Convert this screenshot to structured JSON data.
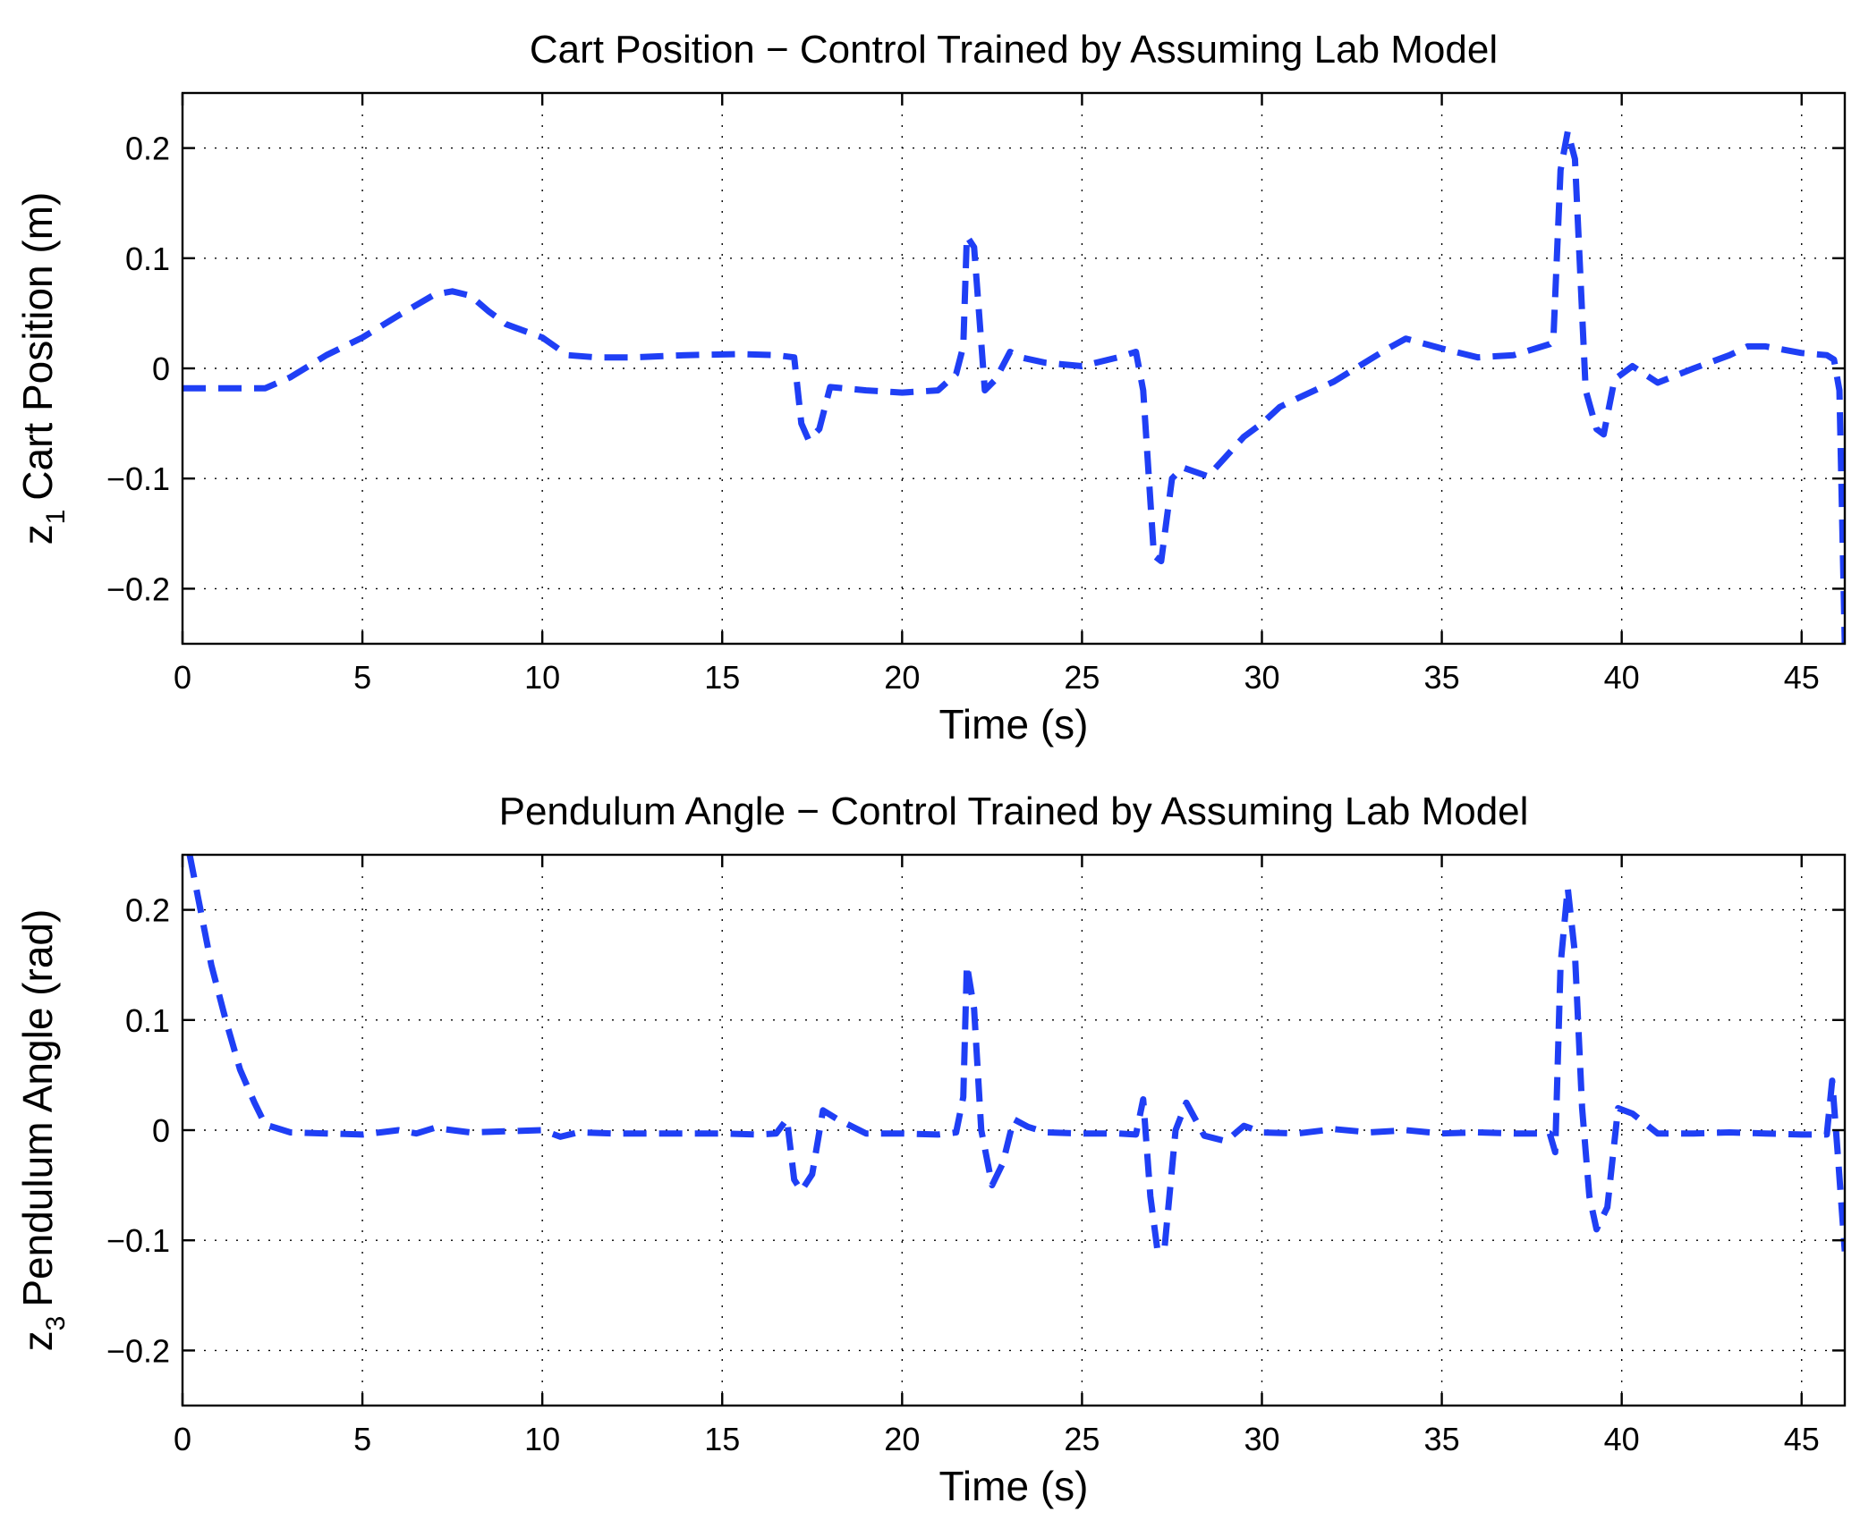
{
  "chart_data": [
    {
      "type": "line",
      "title": "Cart Position − Control Trained by Assuming Lab Model",
      "xlabel": "Time (s)",
      "ylabel_var": "z",
      "ylabel_sub": "1",
      "ylabel_text": "Cart Position (m)",
      "xlim": [
        0,
        46.2
      ],
      "ylim": [
        -0.25,
        0.25
      ],
      "xticks": [
        0,
        5,
        10,
        15,
        20,
        25,
        30,
        35,
        40,
        45
      ],
      "yticks": [
        0.2,
        0.1,
        0,
        -0.1,
        -0.2
      ],
      "ytick_labels": [
        "0.2",
        "0.1",
        "0",
        "−0.1",
        "−0.2"
      ],
      "grid": true,
      "line_color": "#1f3ff5",
      "line_style": "dashed",
      "series": [
        {
          "name": "z1",
          "x": [
            0,
            1,
            2.3,
            3,
            4,
            5,
            6,
            7,
            7.5,
            8,
            8.5,
            9,
            10,
            10.7,
            11.5,
            12.5,
            14,
            15.5,
            16.5,
            17,
            17.2,
            17.4,
            17.7,
            18,
            19,
            20,
            21,
            21.5,
            21.7,
            21.8,
            22,
            22.3,
            22.6,
            23,
            23.3,
            24,
            25,
            26,
            26.5,
            26.7,
            27,
            27.2,
            27.5,
            27.8,
            28.5,
            29,
            29.5,
            30,
            30.5,
            31,
            32,
            33,
            33.5,
            34,
            35,
            36,
            37,
            38,
            38.1,
            38.3,
            38.5,
            38.7,
            39,
            39.3,
            39.5,
            39.8,
            40.3,
            41,
            42,
            43,
            43.5,
            44,
            45,
            45.7,
            45.9,
            46.05,
            46.2
          ],
          "y": [
            -0.018,
            -0.018,
            -0.018,
            -0.008,
            0.012,
            0.028,
            0.048,
            0.067,
            0.07,
            0.066,
            0.052,
            0.04,
            0.028,
            0.012,
            0.01,
            0.01,
            0.012,
            0.013,
            0.012,
            0.01,
            -0.05,
            -0.065,
            -0.055,
            -0.017,
            -0.02,
            -0.022,
            -0.02,
            -0.005,
            0.02,
            0.12,
            0.11,
            -0.02,
            -0.01,
            0.015,
            0.01,
            0.005,
            0.002,
            0.01,
            0.015,
            -0.02,
            -0.17,
            -0.175,
            -0.1,
            -0.09,
            -0.098,
            -0.08,
            -0.062,
            -0.05,
            -0.035,
            -0.027,
            -0.012,
            0.008,
            0.018,
            0.027,
            0.018,
            0.01,
            0.012,
            0.022,
            0.025,
            0.18,
            0.215,
            0.19,
            -0.02,
            -0.055,
            -0.06,
            -0.01,
            0.002,
            -0.013,
            0.0,
            0.012,
            0.02,
            0.02,
            0.014,
            0.012,
            0.008,
            -0.02,
            -0.25
          ]
        }
      ]
    },
    {
      "type": "line",
      "title": "Pendulum Angle − Control Trained by Assuming Lab Model",
      "xlabel": "Time (s)",
      "ylabel_var": "z",
      "ylabel_sub": "3",
      "ylabel_text": "Pendulum Angle (rad)",
      "xlim": [
        0,
        46.2
      ],
      "ylim": [
        -0.25,
        0.25
      ],
      "xticks": [
        0,
        5,
        10,
        15,
        20,
        25,
        30,
        35,
        40,
        45
      ],
      "yticks": [
        0.2,
        0.1,
        0,
        -0.1,
        -0.2
      ],
      "ytick_labels": [
        "0.2",
        "0.1",
        "0",
        "−0.1",
        "−0.2"
      ],
      "grid": true,
      "line_color": "#1f3ff5",
      "line_style": "dashed",
      "series": [
        {
          "name": "z3",
          "x": [
            0.2,
            0.5,
            0.8,
            1.2,
            1.6,
            2.0,
            2.3,
            2.6,
            3,
            4,
            5,
            5.5,
            6,
            6.5,
            7,
            8,
            9,
            10,
            10.5,
            11,
            12,
            13,
            14,
            15,
            16,
            16.5,
            16.8,
            17.0,
            17.2,
            17.5,
            17.8,
            18.2,
            19,
            20,
            21,
            21.5,
            21.7,
            21.8,
            22.0,
            22.2,
            22.5,
            22.8,
            23.1,
            23.5,
            24,
            25,
            26,
            26.5,
            26.7,
            26.9,
            27.1,
            27.3,
            27.6,
            27.9,
            28.4,
            29,
            29.5,
            30,
            31,
            32,
            33,
            34,
            35,
            36,
            37,
            38,
            38.15,
            38.3,
            38.5,
            38.7,
            38.9,
            39.1,
            39.3,
            39.6,
            39.9,
            40.3,
            41,
            42,
            43,
            44,
            45,
            45.7,
            45.85,
            46.0,
            46.2
          ],
          "y": [
            0.25,
            0.2,
            0.15,
            0.1,
            0.055,
            0.025,
            0.005,
            0.002,
            -0.002,
            -0.003,
            -0.004,
            -0.002,
            0.0,
            -0.003,
            0.002,
            -0.002,
            -0.001,
            0.0,
            -0.006,
            -0.002,
            -0.003,
            -0.003,
            -0.003,
            -0.003,
            -0.004,
            -0.003,
            0.01,
            -0.045,
            -0.055,
            -0.04,
            0.018,
            0.01,
            -0.003,
            -0.003,
            -0.004,
            -0.002,
            0.03,
            0.15,
            0.11,
            0.0,
            -0.05,
            -0.03,
            0.01,
            0.003,
            -0.002,
            -0.003,
            -0.003,
            -0.004,
            0.028,
            -0.06,
            -0.11,
            -0.105,
            0.0,
            0.025,
            -0.005,
            -0.01,
            0.004,
            -0.002,
            -0.003,
            0.001,
            -0.002,
            0.0,
            -0.003,
            -0.002,
            -0.003,
            -0.003,
            -0.02,
            0.15,
            0.22,
            0.16,
            0.02,
            -0.06,
            -0.09,
            -0.07,
            0.02,
            0.015,
            -0.003,
            -0.003,
            -0.002,
            -0.003,
            -0.004,
            -0.004,
            0.045,
            -0.02,
            -0.11
          ]
        }
      ]
    }
  ]
}
